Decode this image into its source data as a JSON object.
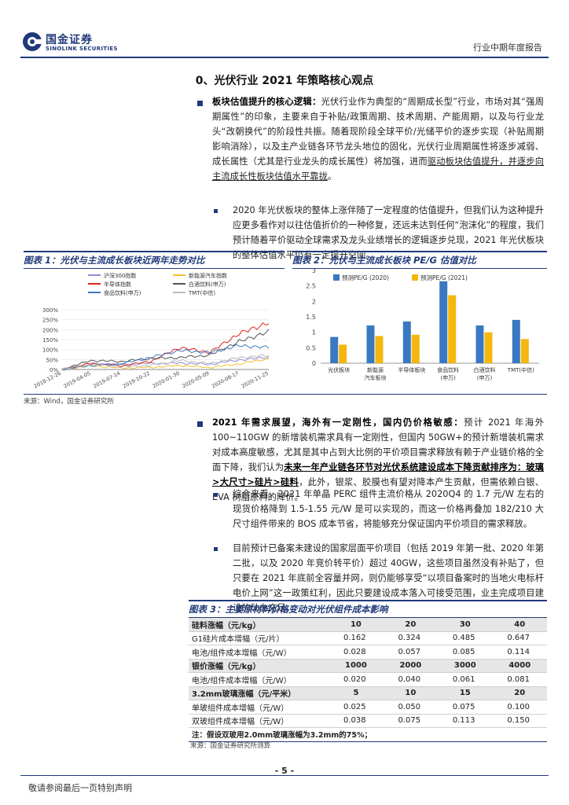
{
  "header": {
    "logo_cn": "国金证券",
    "logo_en": "SINOLINK SECURITIES",
    "report_type": "行业中期年度报告"
  },
  "section_title": "0、光伏行业 2021 年策略核心观点",
  "para1": {
    "lead": "板块估值提升的核心逻辑：",
    "text_a": "光伏行业作为典型的“周期成长型”行业，市场对其“强周期属性”的印象，主要来自于补贴/政策周期、技术周期、产能周期，以及与行业龙头“改朝换代”的阶段性共振。随着现阶段全球平价/光储平价的逐步实现（补贴周期影响消除），以及主产业链各环节龙头地位的固化，光伏行业周期属性将逐步减弱、成长属性（尤其是行业龙头的成长属性）将加强，进而",
    "text_b": "驱动板块估值提升，并逐步向主流成长性板块估值水平靠拢",
    "text_c": "。"
  },
  "para1_sub": "2020 年光伏板块的整体上涨伴随了一定程度的估值提升，但我们认为这种提升应更多看作对以往估值折价的一种修复，还远未达到任何“泡沫化”的程度，我们预计随着平价驱动全球需求及龙头业绩增长的逻辑逐步兑现，2021 年光伏板块的整体估值水平仍有一定提升空间。",
  "figure1": {
    "title": "图表 1：光伏与主流成长板块近两年走势对比",
    "legend": [
      "沪深300指数",
      "新能源汽车指数",
      "半导体指数",
      "白酒饮料(申万)",
      "食品饮料(申万)",
      "TMT(中信)"
    ],
    "colors": [
      "#8e8ed8",
      "#f2c12e",
      "#e0241b",
      "#555555",
      "#3a78c2",
      "#bbbbbb"
    ],
    "ytick_labels": [
      "0%",
      "50%",
      "100%",
      "150%",
      "200%",
      "250%",
      "300%"
    ],
    "xtick_labels": [
      "2018-12-26",
      "2019-04-05",
      "2019-07-14",
      "2019-10-22",
      "2020-01-30",
      "2020-05-09",
      "2020-08-17",
      "2020-11-25"
    ],
    "source": "来源：Wind，国金证券研究所"
  },
  "figure2": {
    "title": "图表 2：光伏与主流成长板块 PE/G 估值对比",
    "source": ""
  },
  "chart_data": [
    {
      "type": "line",
      "title": "图表 1：光伏与主流成长板块近两年走势对比",
      "x": [
        "2018-12-26",
        "2019-04-05",
        "2019-07-14",
        "2019-10-22",
        "2020-01-30",
        "2020-05-09",
        "2020-08-17",
        "2020-11-25"
      ],
      "ylim": [
        0,
        300
      ],
      "ylabel": "",
      "series": [
        {
          "name": "沪深300指数",
          "values": [
            0,
            28,
            26,
            30,
            32,
            26,
            48,
            62
          ]
        },
        {
          "name": "新能源汽车指数",
          "values": [
            0,
            18,
            8,
            10,
            20,
            10,
            28,
            55
          ]
        },
        {
          "name": "半导体指数",
          "values": [
            0,
            30,
            18,
            40,
            110,
            85,
            180,
            235
          ]
        },
        {
          "name": "白酒饮料(申万)",
          "values": [
            0,
            45,
            40,
            55,
            60,
            72,
            140,
            190
          ]
        },
        {
          "name": "食品饮料(申万)",
          "values": [
            0,
            20,
            28,
            60,
            95,
            85,
            120,
            110
          ]
        },
        {
          "name": "TMT(中信)",
          "values": [
            0,
            25,
            12,
            20,
            45,
            30,
            60,
            70
          ]
        }
      ]
    },
    {
      "type": "bar",
      "title": "图表 2：光伏与主流成长板块 PE/G 估值对比",
      "categories": [
        "光伏板块",
        "新能源汽车板块",
        "半导体板块",
        "食品饮料(申万)",
        "白酒饮料(申万)",
        "TMT(中信)"
      ],
      "category_lines": [
        [
          "光伏板块"
        ],
        [
          "新能源",
          "汽车板块"
        ],
        [
          "半导体板块"
        ],
        [
          "食品饮料",
          "(申万)"
        ],
        [
          "白酒饮料",
          "(申万)"
        ],
        [
          "TMT(中信)"
        ]
      ],
      "ylim": [
        0,
        3
      ],
      "yticks": [
        0,
        0.5,
        1,
        1.5,
        2,
        2.5,
        3
      ],
      "ytick_labels": [
        "0",
        "0.5",
        "1",
        "1.5",
        "2",
        "2.5",
        "3"
      ],
      "series": [
        {
          "name": "预测PE/G (2020)",
          "values": [
            0.85,
            1.22,
            1.35,
            2.65,
            1.22,
            1.4
          ]
        },
        {
          "name": "预测PE/G (2021)",
          "values": [
            0.6,
            0.88,
            0.92,
            2.2,
            1.0,
            0.78
          ]
        }
      ],
      "colors": [
        "#3a78c2",
        "#f5b70f"
      ],
      "legend": "top"
    }
  ],
  "para2": {
    "lead": "2021 年需求展望，海外有一定刚性，国内仍价格敏感：",
    "text_a": "预计 2021 年海外 100~110GW 的新增装机需求具有一定刚性，但国内 50GW+的预计新增装机需求对成本高度敏感，尤其是其中占到大比例的平价项目需求释放有赖于产业链价格的全面下降，我们认为",
    "text_b": "未来一年产业链各环节对光伏系统建设成本下降贡献排序为：玻璃>大尺寸>硅片>硅料",
    "text_c": "，此外，银浆、胶膜也有望对降本产生贡献，但需依赖白银、EVA 树脂原料的降价。"
  },
  "para2_sub1": "综合来看，2021 年单晶 PERC 组件主流价格从 2020Q4 的 1.7 元/W 左右的现货价格降到 1.5-1.55 元/W 是可以实现的，而这一价格再叠加 182/210 大尺寸组件带来的 BOS 成本节省，将能够充分保证国内平价项目的需求释放。",
  "para2_sub2": "目前预计已备案未建设的国家层面平价项目（包括 2019 年第一批、2020 年第二批，以及 2020 年竞价转平价）超过 40GW，这些项目虽然没有补贴了，但只要在 2021 年底前全容量并网，则仍能够享受“以项目备案时的当地火电标杆电价上网”这一政策红利，因此只要建设成本落入可接受范围，业主完成项目建设的动力充足。",
  "figure3": {
    "title": "图表 3：主要原材料价格变动对光伏组件成本影响",
    "rows": [
      {
        "type": "hdr",
        "label": "硅料涨幅（元/kg）",
        "values": [
          "10",
          "20",
          "30",
          "40"
        ]
      },
      {
        "type": "row",
        "label": "G1硅片成本增幅（元/片）",
        "values": [
          "0.162",
          "0.324",
          "0.485",
          "0.647"
        ]
      },
      {
        "type": "row",
        "label": "电池/组件成本增幅（元/W）",
        "values": [
          "0.028",
          "0.057",
          "0.085",
          "0.114"
        ]
      },
      {
        "type": "hdr",
        "label": "银价涨幅（元/kg）",
        "values": [
          "1000",
          "2000",
          "3000",
          "4000"
        ]
      },
      {
        "type": "row",
        "label": "电池/组件成本增幅（元/W）",
        "values": [
          "0.020",
          "0.040",
          "0.061",
          "0.081"
        ]
      },
      {
        "type": "hdr",
        "label": "3.2mm玻璃涨幅（元/平米）",
        "values": [
          "5",
          "10",
          "15",
          "20"
        ]
      },
      {
        "type": "row",
        "label": "单玻组件成本增幅（元/W）",
        "values": [
          "0.025",
          "0.050",
          "0.075",
          "0.100"
        ]
      },
      {
        "type": "row",
        "label": "双玻组件成本增幅（元/W）",
        "values": [
          "0.038",
          "0.075",
          "0.113",
          "0.150"
        ]
      }
    ],
    "note": "注：假设双玻用2.0mm玻璃涨幅为3.2mm的75%；",
    "source": "来源：国金证券研究所测算"
  },
  "footer": {
    "page_number": "- 5 -",
    "disclaimer": "敬请参阅最后一页特别声明"
  }
}
